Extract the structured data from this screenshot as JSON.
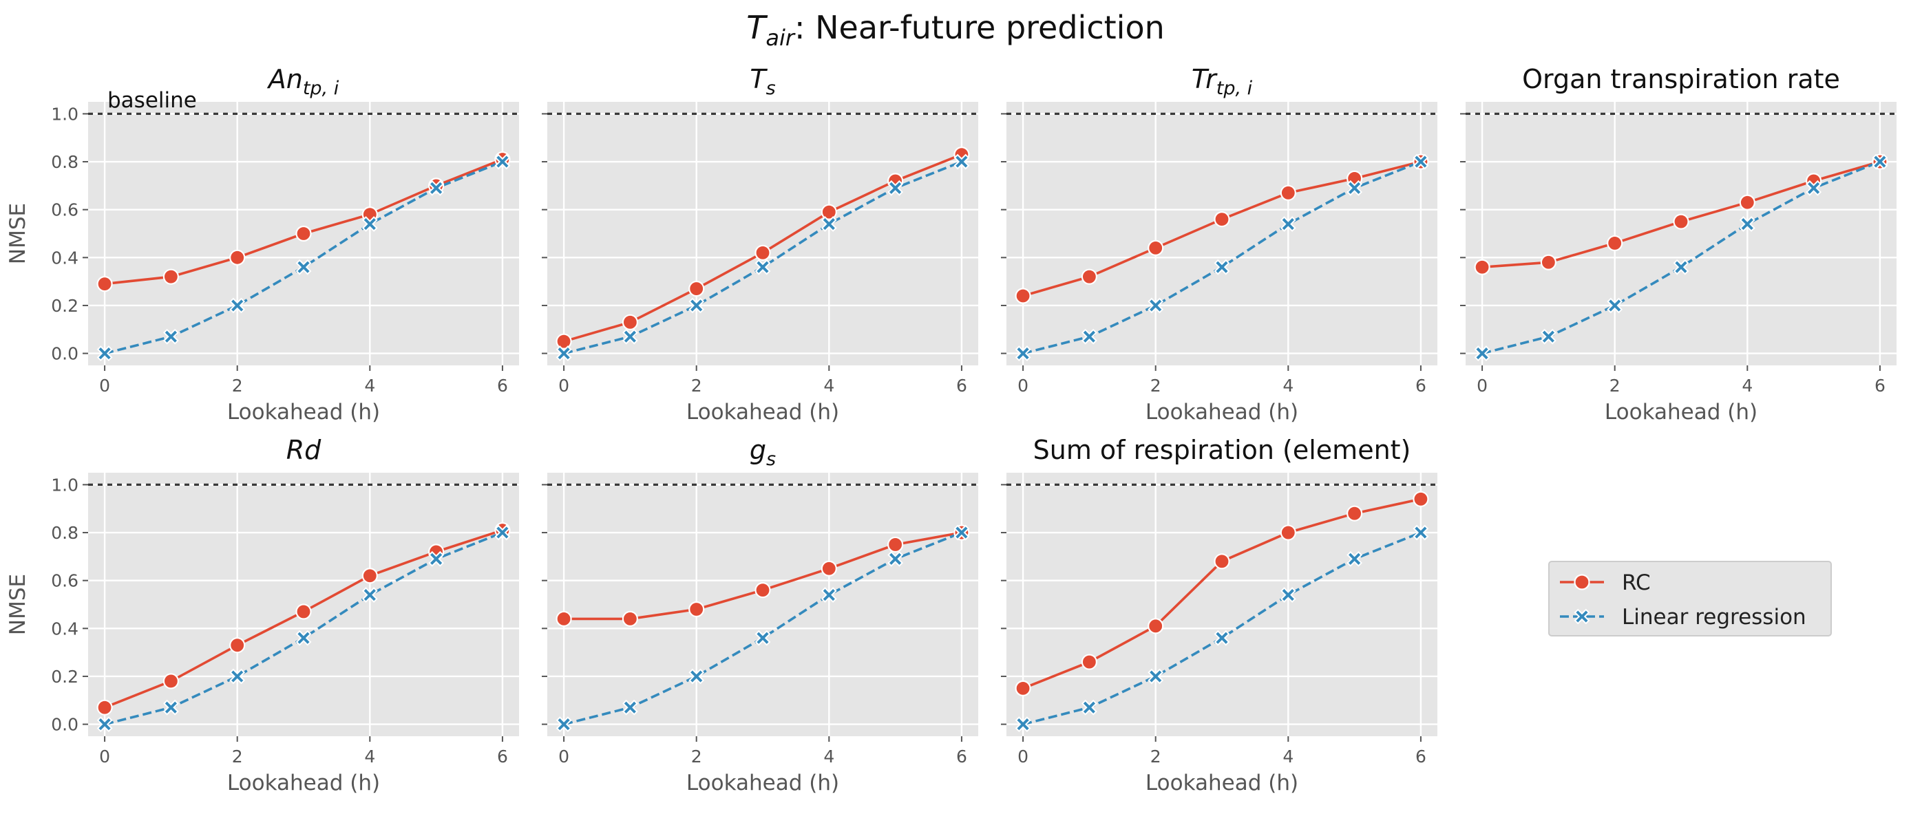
{
  "figure": {
    "title": "Tair: Near-future prediction",
    "title_main": "T",
    "title_sub": "air",
    "title_rest": ": Near-future prediction",
    "baseline_label": "baseline"
  },
  "legend": {
    "placement": "right",
    "entries": [
      "RC",
      "Linear regression"
    ]
  },
  "colors": {
    "rc": "#e24a33",
    "linear_regression": "#348abd",
    "panel_background": "#e5e5e5",
    "baseline": "#3a3a3a"
  },
  "chart_data": [
    {
      "type": "line",
      "title_main": "An",
      "title_sub": "tp, i",
      "title_italic": true,
      "xlabel": "Lookahead (h)",
      "ylabel": "NMSE",
      "xlim": [
        -0.25,
        6.25
      ],
      "ylim": [
        -0.05,
        1.05
      ],
      "xticks": [
        "0",
        "2",
        "4",
        "6"
      ],
      "yticks": [
        "0.0",
        "0.2",
        "0.4",
        "0.6",
        "0.8",
        "1.0"
      ],
      "baseline": 1.0,
      "grid": true,
      "x": [
        0,
        1,
        2,
        3,
        4,
        5,
        6
      ],
      "series": [
        {
          "name": "RC",
          "values": [
            0.29,
            0.32,
            0.4,
            0.5,
            0.58,
            0.7,
            0.81
          ]
        },
        {
          "name": "Linear regression",
          "values": [
            0.0,
            0.07,
            0.2,
            0.36,
            0.54,
            0.69,
            0.8
          ]
        }
      ]
    },
    {
      "type": "line",
      "title_main": "T",
      "title_sub": "s",
      "title_italic": true,
      "xlabel": "Lookahead (h)",
      "ylabel": "",
      "xlim": [
        -0.25,
        6.25
      ],
      "ylim": [
        -0.05,
        1.05
      ],
      "xticks": [
        "0",
        "2",
        "4",
        "6"
      ],
      "yticks": [
        "0.0",
        "0.2",
        "0.4",
        "0.6",
        "0.8",
        "1.0"
      ],
      "baseline": 1.0,
      "grid": true,
      "x": [
        0,
        1,
        2,
        3,
        4,
        5,
        6
      ],
      "series": [
        {
          "name": "RC",
          "values": [
            0.05,
            0.13,
            0.27,
            0.42,
            0.59,
            0.72,
            0.83
          ]
        },
        {
          "name": "Linear regression",
          "values": [
            0.0,
            0.07,
            0.2,
            0.36,
            0.54,
            0.69,
            0.8
          ]
        }
      ]
    },
    {
      "type": "line",
      "title_main": "Tr",
      "title_sub": "tp, i",
      "title_italic": true,
      "xlabel": "Lookahead (h)",
      "ylabel": "",
      "xlim": [
        -0.25,
        6.25
      ],
      "ylim": [
        -0.05,
        1.05
      ],
      "xticks": [
        "0",
        "2",
        "4",
        "6"
      ],
      "yticks": [
        "0.0",
        "0.2",
        "0.4",
        "0.6",
        "0.8",
        "1.0"
      ],
      "baseline": 1.0,
      "grid": true,
      "x": [
        0,
        1,
        2,
        3,
        4,
        5,
        6
      ],
      "series": [
        {
          "name": "RC",
          "values": [
            0.24,
            0.32,
            0.44,
            0.56,
            0.67,
            0.73,
            0.8
          ]
        },
        {
          "name": "Linear regression",
          "values": [
            0.0,
            0.07,
            0.2,
            0.36,
            0.54,
            0.69,
            0.8
          ]
        }
      ]
    },
    {
      "type": "line",
      "title_main": "Organ transpiration rate",
      "title_sub": "",
      "title_italic": false,
      "xlabel": "Lookahead (h)",
      "ylabel": "",
      "xlim": [
        -0.25,
        6.25
      ],
      "ylim": [
        -0.05,
        1.05
      ],
      "xticks": [
        "0",
        "2",
        "4",
        "6"
      ],
      "yticks": [
        "0.0",
        "0.2",
        "0.4",
        "0.6",
        "0.8",
        "1.0"
      ],
      "baseline": 1.0,
      "grid": true,
      "x": [
        0,
        1,
        2,
        3,
        4,
        5,
        6
      ],
      "series": [
        {
          "name": "RC",
          "values": [
            0.36,
            0.38,
            0.46,
            0.55,
            0.63,
            0.72,
            0.8
          ]
        },
        {
          "name": "Linear regression",
          "values": [
            0.0,
            0.07,
            0.2,
            0.36,
            0.54,
            0.69,
            0.8
          ]
        }
      ]
    },
    {
      "type": "line",
      "title_main": "Rd",
      "title_sub": "",
      "title_italic": true,
      "xlabel": "Lookahead (h)",
      "ylabel": "NMSE",
      "xlim": [
        -0.25,
        6.25
      ],
      "ylim": [
        -0.05,
        1.05
      ],
      "xticks": [
        "0",
        "2",
        "4",
        "6"
      ],
      "yticks": [
        "0.0",
        "0.2",
        "0.4",
        "0.6",
        "0.8",
        "1.0"
      ],
      "baseline": 1.0,
      "grid": true,
      "x": [
        0,
        1,
        2,
        3,
        4,
        5,
        6
      ],
      "series": [
        {
          "name": "RC",
          "values": [
            0.07,
            0.18,
            0.33,
            0.47,
            0.62,
            0.72,
            0.81
          ]
        },
        {
          "name": "Linear regression",
          "values": [
            0.0,
            0.07,
            0.2,
            0.36,
            0.54,
            0.69,
            0.8
          ]
        }
      ]
    },
    {
      "type": "line",
      "title_main": "g",
      "title_sub": "s",
      "title_italic": true,
      "xlabel": "Lookahead (h)",
      "ylabel": "",
      "xlim": [
        -0.25,
        6.25
      ],
      "ylim": [
        -0.05,
        1.05
      ],
      "xticks": [
        "0",
        "2",
        "4",
        "6"
      ],
      "yticks": [
        "0.0",
        "0.2",
        "0.4",
        "0.6",
        "0.8",
        "1.0"
      ],
      "baseline": 1.0,
      "grid": true,
      "x": [
        0,
        1,
        2,
        3,
        4,
        5,
        6
      ],
      "series": [
        {
          "name": "RC",
          "values": [
            0.44,
            0.44,
            0.48,
            0.56,
            0.65,
            0.75,
            0.8
          ]
        },
        {
          "name": "Linear regression",
          "values": [
            0.0,
            0.07,
            0.2,
            0.36,
            0.54,
            0.69,
            0.8
          ]
        }
      ]
    },
    {
      "type": "line",
      "title_main": "Sum of respiration (element)",
      "title_sub": "",
      "title_italic": false,
      "xlabel": "Lookahead (h)",
      "ylabel": "",
      "xlim": [
        -0.25,
        6.25
      ],
      "ylim": [
        -0.05,
        1.05
      ],
      "xticks": [
        "0",
        "2",
        "4",
        "6"
      ],
      "yticks": [
        "0.0",
        "0.2",
        "0.4",
        "0.6",
        "0.8",
        "1.0"
      ],
      "baseline": 1.0,
      "grid": true,
      "x": [
        0,
        1,
        2,
        3,
        4,
        5,
        6
      ],
      "series": [
        {
          "name": "RC",
          "values": [
            0.15,
            0.26,
            0.41,
            0.68,
            0.8,
            0.88,
            0.94
          ]
        },
        {
          "name": "Linear regression",
          "values": [
            0.0,
            0.07,
            0.2,
            0.36,
            0.54,
            0.69,
            0.8
          ]
        }
      ]
    }
  ]
}
